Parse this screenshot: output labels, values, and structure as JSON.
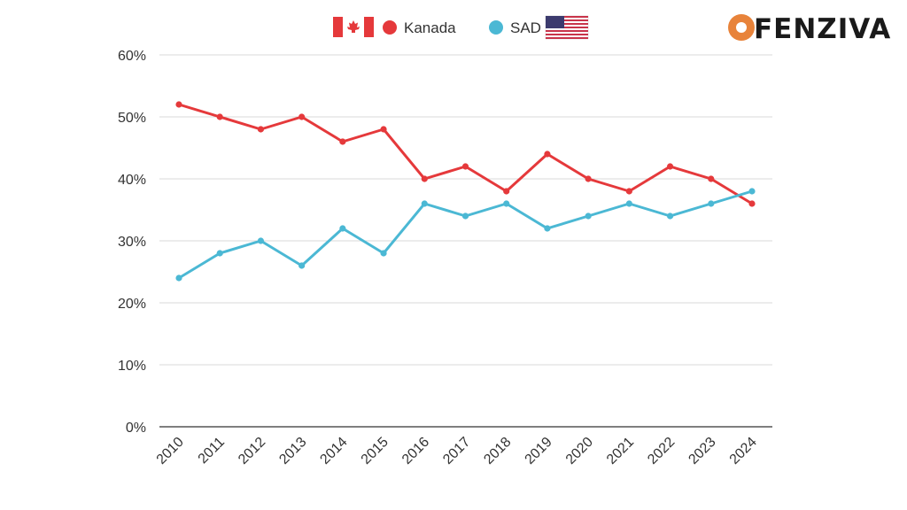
{
  "brand": {
    "name": "FENZIVA",
    "accent": "#e8833a"
  },
  "colors": {
    "canada": "#e5393b",
    "usa": "#4bb8d4",
    "grid": "#d9d9d9",
    "axis": "#333333"
  },
  "legend": [
    {
      "flag": "canada-flag-icon",
      "label": "Kanada",
      "color": "#e5393b"
    },
    {
      "label": "SAD",
      "color": "#4bb8d4",
      "flag": "usa-flag-icon"
    }
  ],
  "chart_data": {
    "type": "line",
    "title": "",
    "xlabel": "",
    "ylabel": "",
    "x": [
      "2010",
      "2011",
      "2012",
      "2013",
      "2014",
      "2015",
      "2016",
      "2017",
      "2018",
      "2019",
      "2020",
      "2021",
      "2022",
      "2023",
      "2024"
    ],
    "series": [
      {
        "name": "Kanada",
        "color": "#e5393b",
        "values": [
          52,
          50,
          48,
          50,
          46,
          48,
          40,
          42,
          38,
          44,
          40,
          38,
          42,
          40,
          36
        ]
      },
      {
        "name": "SAD",
        "color": "#4bb8d4",
        "values": [
          24,
          28,
          30,
          26,
          32,
          28,
          36,
          34,
          36,
          32,
          34,
          36,
          34,
          36,
          38
        ]
      }
    ],
    "ylim": [
      0,
      60
    ],
    "yticks": [
      "0%",
      "10%",
      "20%",
      "30%",
      "40%",
      "50%",
      "60%"
    ],
    "ytick_values": [
      0,
      10,
      20,
      30,
      40,
      50,
      60
    ],
    "grid": true,
    "legend_position": "top-center"
  }
}
